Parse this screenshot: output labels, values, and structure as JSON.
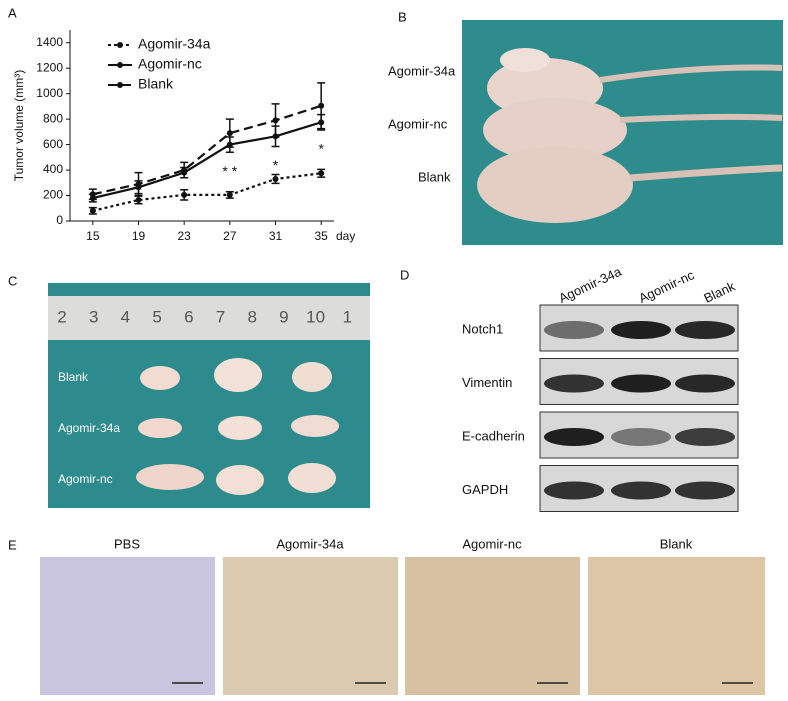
{
  "chart_data": {
    "type": "line",
    "panel_label": "A",
    "y_label": "Tumor volume (mm³)",
    "x_label": "day",
    "x": [
      15,
      19,
      23,
      27,
      31,
      35
    ],
    "xlim": [
      13,
      37
    ],
    "xticks": [
      15,
      19,
      23,
      27,
      31,
      35
    ],
    "ylim": [
      0,
      1500
    ],
    "yticks": [
      0,
      200,
      400,
      600,
      800,
      1000,
      1200,
      1400
    ],
    "legend": "upper left",
    "series": [
      {
        "name": "Agomir-34a",
        "color": "#111111",
        "line_style": "dotted",
        "values": [
          80,
          165,
          205,
          205,
          330,
          375
        ],
        "errors": [
          25,
          30,
          40,
          25,
          35,
          30
        ]
      },
      {
        "name": "Agomir-nc",
        "color": "#111111",
        "line_style": "solid",
        "values": [
          180,
          265,
          380,
          600,
          665,
          775
        ],
        "errors": [
          30,
          50,
          40,
          60,
          80,
          60
        ]
      },
      {
        "name": "Blank",
        "color": "#111111",
        "line_style": "dashed",
        "values": [
          210,
          290,
          400,
          690,
          790,
          905
        ],
        "errors": [
          40,
          90,
          60,
          110,
          130,
          180
        ]
      }
    ],
    "annotations": [
      {
        "x": 27,
        "text": "* *"
      },
      {
        "x": 31,
        "text": "*"
      },
      {
        "x": 35,
        "text": "*"
      }
    ]
  },
  "panel_b": {
    "label": "B",
    "rows": [
      "Agomir-34a",
      "Agomir-nc",
      "Blank"
    ]
  },
  "panel_c": {
    "label": "C",
    "ruler": [
      "2",
      "3",
      "4",
      "5",
      "6",
      "7",
      "8",
      "9",
      "10",
      "1"
    ],
    "rows": [
      "Blank",
      "Agomir-34a",
      "Agomir-nc"
    ]
  },
  "panel_d": {
    "label": "D",
    "columns": [
      "Agomir-34a",
      "Agomir-nc",
      "Blank"
    ],
    "rows": [
      "Notch1",
      "Vimentin",
      "E-cadherin",
      "GAPDH"
    ]
  },
  "panel_e": {
    "label": "E",
    "titles": [
      "PBS",
      "Agomir-34a",
      "Agomir-nc",
      "Blank"
    ]
  }
}
